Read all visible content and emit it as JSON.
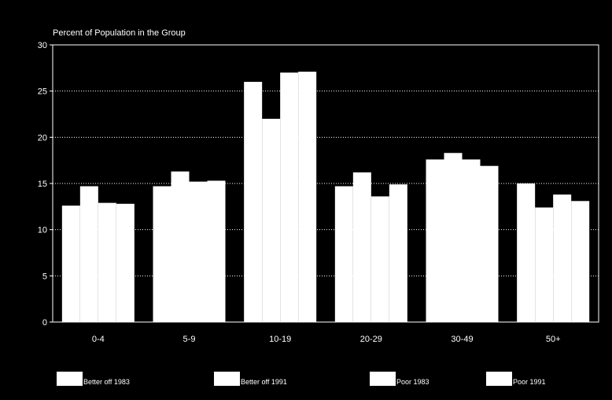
{
  "chart_data": {
    "type": "bar",
    "ylabel": "Percent of Population in the Group",
    "ylim": [
      0,
      30
    ],
    "yticks": [
      0,
      5,
      10,
      15,
      20,
      25,
      30
    ],
    "grid": true,
    "grid_style": "dotted",
    "legend_position": "bottom",
    "categories": [
      "0-4",
      "5-9",
      "10-19",
      "20-29",
      "30-49",
      "50+"
    ],
    "series": [
      {
        "name": "Better off 1983",
        "values": [
          12.6,
          14.7,
          26.0,
          14.7,
          17.6,
          15.0
        ]
      },
      {
        "name": "Better off 1991",
        "values": [
          14.7,
          16.3,
          22.0,
          16.2,
          18.3,
          12.4
        ]
      },
      {
        "name": "Poor 1983",
        "values": [
          12.9,
          15.2,
          27.0,
          13.6,
          17.6,
          13.8
        ]
      },
      {
        "name": "Poor 1991",
        "values": [
          12.8,
          15.3,
          27.1,
          14.9,
          16.9,
          13.1
        ]
      }
    ],
    "colors": {
      "background": "#000000",
      "bars": "#ffffff",
      "axes": "#ffffff",
      "text": "#ffffff",
      "grid": "#ffffff"
    }
  }
}
